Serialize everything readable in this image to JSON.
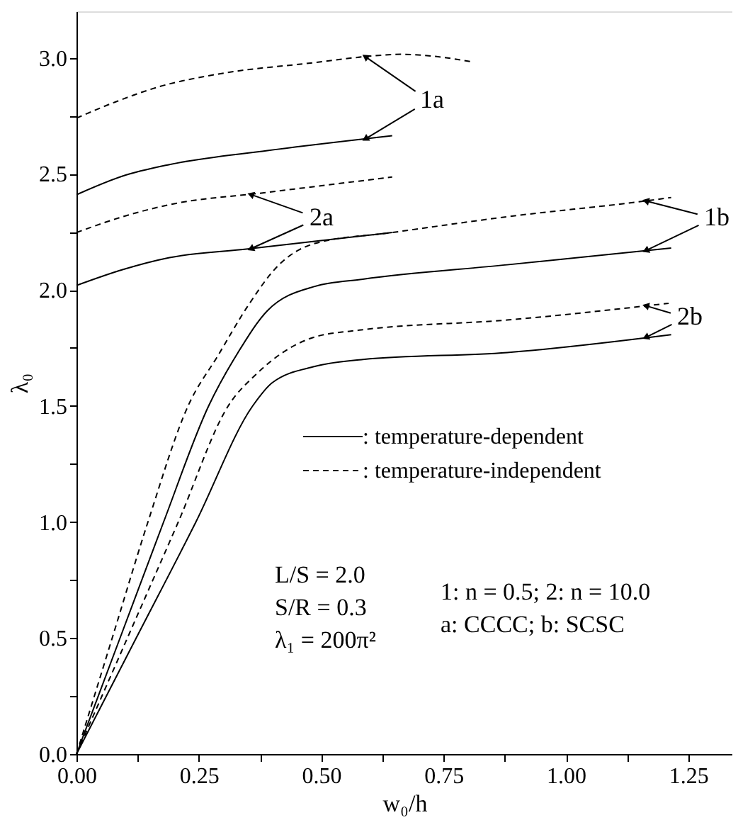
{
  "chart_data": {
    "type": "line",
    "xlabel": "w₀/h",
    "ylabel": "λ₀",
    "xlim": [
      0,
      1.34
    ],
    "ylim": [
      0,
      3.2
    ],
    "xticks": [
      {
        "value": 0,
        "label": "0.00"
      },
      {
        "value": 0.125,
        "label": null
      },
      {
        "value": 0.25,
        "label": "0.25"
      },
      {
        "value": 0.375,
        "label": null
      },
      {
        "value": 0.5,
        "label": "0.50"
      },
      {
        "value": 0.625,
        "label": null
      },
      {
        "value": 0.75,
        "label": "0.75"
      },
      {
        "value": 0.875,
        "label": null
      },
      {
        "value": 1,
        "label": "1.00"
      },
      {
        "value": 1.125,
        "label": null
      },
      {
        "value": 1.25,
        "label": "1.25"
      }
    ],
    "yticks": [
      {
        "value": 0,
        "label": "0.0"
      },
      {
        "value": 0.25,
        "label": null
      },
      {
        "value": 0.5,
        "label": "0.5"
      },
      {
        "value": 0.75,
        "label": null
      },
      {
        "value": 1,
        "label": "1.0"
      },
      {
        "value": 1.25,
        "label": null
      },
      {
        "value": 1.5,
        "label": "1.5"
      },
      {
        "value": 1.75,
        "label": null
      },
      {
        "value": 2,
        "label": "2.0"
      },
      {
        "value": 2.25,
        "label": null
      },
      {
        "value": 2.5,
        "label": "2.5"
      },
      {
        "value": 2.75,
        "label": null
      },
      {
        "value": 3,
        "label": "3.0"
      }
    ],
    "grid": false,
    "legend": "center right",
    "marker": "none",
    "series": [
      {
        "name": ": temperature-dependent",
        "color": "#000000",
        "line_style": "solid",
        "x": [
          0,
          0.094,
          0.19,
          0.39,
          0.645
        ],
        "values": [
          2.41,
          2.49,
          2.54,
          2.6,
          2.664
        ]
      },
      {
        "name": ": temperature-independent",
        "color": "#000000",
        "line_style": "dashed",
        "x": [
          0,
          0.08,
          0.17,
          0.29,
          0.49,
          0.595,
          0.664,
          0.733,
          0.807
        ],
        "values": [
          2.74,
          2.81,
          2.876,
          2.93,
          2.98,
          3.006,
          3.015,
          3.006,
          2.983
        ]
      },
      {
        "color": "#000000",
        "line_style": "solid",
        "x": [
          0,
          0.094,
          0.19,
          0.35,
          0.645
        ],
        "values": [
          2.019,
          2.087,
          2.139,
          2.176,
          2.247
        ]
      },
      {
        "color": "#000000",
        "line_style": "dashed",
        "x": [
          0,
          0.094,
          0.19,
          0.39,
          0.645
        ],
        "values": [
          2.247,
          2.315,
          2.367,
          2.42,
          2.486
        ]
      },
      {
        "color": "#000000",
        "line_style": "solid",
        "x": [
          0,
          0.089,
          0.178,
          0.27,
          0.33,
          0.39,
          0.487,
          0.585,
          0.88,
          1.215
        ],
        "values": [
          0,
          0.5,
          1.0,
          1.5,
          1.73,
          1.91,
          2.015,
          2.046,
          2.108,
          2.18
        ]
      },
      {
        "color": "#000000",
        "line_style": "dashed",
        "x": [
          0,
          0.073,
          0.146,
          0.228,
          0.29,
          0.35,
          0.41,
          0.487,
          0.645,
          0.88,
          1.166,
          1.215
        ],
        "values": [
          0,
          0.5,
          1.0,
          1.5,
          1.72,
          1.93,
          2.1,
          2.2,
          2.247,
          2.315,
          2.384,
          2.398
        ]
      },
      {
        "color": "#000000",
        "line_style": "solid",
        "x": [
          0,
          0.122,
          0.244,
          0.36,
          0.4,
          0.487,
          0.585,
          0.88,
          1.215
        ],
        "values": [
          0,
          0.5,
          1.0,
          1.5,
          1.6,
          1.67,
          1.7,
          1.73,
          1.807
        ]
      },
      {
        "color": "#000000",
        "line_style": "dashed",
        "x": [
          0,
          0.104,
          0.208,
          0.31,
          0.369,
          0.487,
          0.585,
          0.88,
          1.21
        ],
        "values": [
          0,
          0.5,
          1.0,
          1.5,
          1.64,
          1.797,
          1.828,
          1.87,
          1.942
        ]
      }
    ],
    "annotations": [
      {
        "text": "1a",
        "x": 0.59,
        "y": 2.65
      },
      {
        "text": "2a",
        "x": 0.356,
        "y": 2.177
      },
      {
        "text": "1b",
        "x": 1.163,
        "y": 2.169
      },
      {
        "text": "2b",
        "x": 1.163,
        "y": 1.795
      },
      "L/S = 2.0",
      "S/R = 0.3",
      "λ₁ = 200π²",
      "1: n = 0.5;  2: n = 10.0",
      "a: CCCC;      b: SCSC"
    ]
  }
}
